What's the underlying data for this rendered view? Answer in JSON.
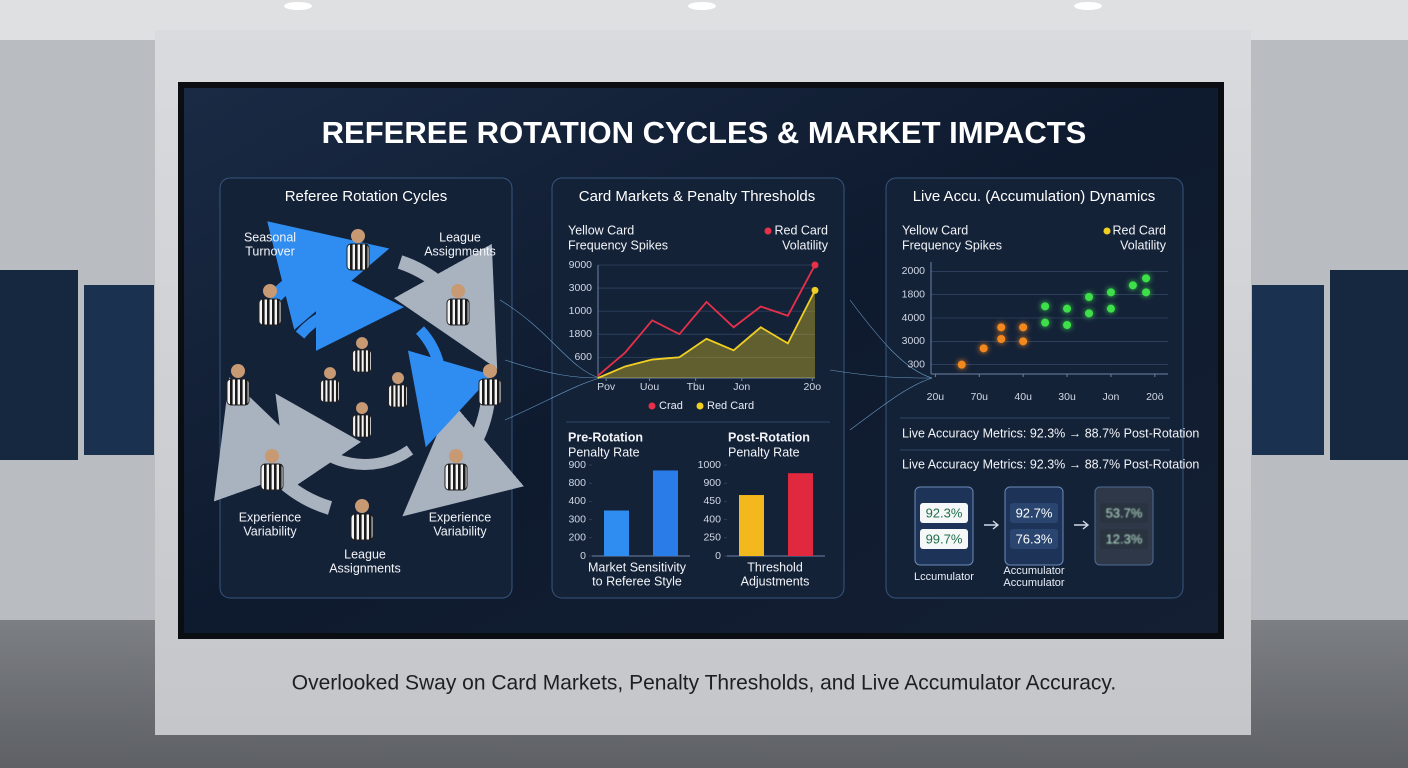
{
  "title": "REFEREE ROTATION CYCLES & MARKET IMPACTS",
  "caption": "Overlooked Sway on Card Markets, Penalty Thresholds, and Live Accumulator Accuracy.",
  "rotation": {
    "title": "Referee Rotation Cycles",
    "labels": [
      [
        "Seasonal",
        "Turnover"
      ],
      [
        "League",
        "Assignments"
      ],
      [
        "Experience",
        "Variability"
      ],
      [
        "Experience",
        "Variability"
      ],
      [
        "League",
        "Assignments"
      ]
    ]
  },
  "cards_panel": {
    "title": "Card Markets & Penalty Thresholds"
  },
  "live_panel": {
    "title": "Live Accu. (Accumulation) Dynamics",
    "metrics": [
      "Live Accuracy Metrics: 92.3% → 88.7% Post-Rotation",
      "Live Accuracy Metrics: 92.3% → 88.7% Post-Rotation"
    ],
    "cards": [
      {
        "values": [
          "92.3%",
          "99.7%"
        ],
        "label": [
          "Lccumulator"
        ]
      },
      {
        "values": [
          "92.7%",
          "76.3%"
        ],
        "label": [
          "Accumulator",
          "Accumulator"
        ]
      },
      {
        "values": [
          "53.7%",
          "12.3%"
        ]
      }
    ]
  },
  "chart_data": [
    {
      "type": "line",
      "header_left": [
        "Yellow Card",
        "Frequency Spikes"
      ],
      "header_right": [
        "Red Card",
        "Volatility"
      ],
      "header_color": "#e8304a",
      "x": [
        0,
        1,
        2,
        3,
        4,
        5,
        6,
        7,
        8
      ],
      "series": [
        {
          "name": "Crad",
          "color": "#e8304a",
          "values": [
            0.2,
            1.2,
            2.6,
            2.0,
            3.4,
            2.3,
            3.2,
            2.8,
            5.0
          ]
        },
        {
          "name": "Red Card",
          "color": "#f0cf22",
          "values": [
            0.1,
            0.6,
            0.9,
            1.0,
            1.8,
            1.3,
            2.3,
            1.6,
            3.9
          ]
        }
      ],
      "xlim": [
        0,
        8
      ],
      "xticks": [
        {
          "value": 0.3,
          "label": "Pov"
        },
        {
          "value": 1.9,
          "label": "Uou"
        },
        {
          "value": 3.6,
          "label": "Tbu"
        },
        {
          "value": 5.3,
          "label": "Jon"
        },
        {
          "value": 7.9,
          "label": "20o"
        }
      ],
      "ylim": [
        0.1,
        5
      ],
      "yticks": [
        {
          "value": 1,
          "label": "600"
        },
        {
          "value": 2,
          "label": "1800"
        },
        {
          "value": 3,
          "label": "1000"
        },
        {
          "value": 4,
          "label": "3000"
        },
        {
          "value": 5,
          "label": "9000"
        }
      ],
      "grid": true
    },
    {
      "type": "scatter",
      "header_left": [
        "Yellow Card",
        "Frequency Spikes"
      ],
      "header_right": [
        "Red Card",
        "Volatility"
      ],
      "header_color": "#f0cf22",
      "series": [
        {
          "color": "#f2881e",
          "x": [
            0.6,
            1.1,
            1.5,
            1.5,
            2.0,
            2.0
          ],
          "values": [
            1.0,
            1.7,
            2.1,
            2.6,
            2.0,
            2.6
          ]
        },
        {
          "color": "#3ee04a",
          "x": [
            2.5,
            2.5,
            3.0,
            3.0,
            3.5,
            3.5,
            4.0,
            4.0,
            4.5,
            4.8,
            4.8
          ],
          "values": [
            2.8,
            3.5,
            2.7,
            3.4,
            3.2,
            3.9,
            3.4,
            4.1,
            4.4,
            4.1,
            4.7
          ]
        }
      ],
      "xlim": [
        -0.1,
        5.3
      ],
      "xticks": [
        {
          "value": 0,
          "label": "20u"
        },
        {
          "value": 1,
          "label": "70u"
        },
        {
          "value": 2,
          "label": "40u"
        },
        {
          "value": 3,
          "label": "30u"
        },
        {
          "value": 4,
          "label": "Jon"
        },
        {
          "value": 5,
          "label": "20ö"
        }
      ],
      "ylim": [
        0.6,
        5.4
      ],
      "yticks": [
        {
          "value": 1,
          "label": "300"
        },
        {
          "value": 2,
          "label": "3000"
        },
        {
          "value": 3,
          "label": "4000"
        },
        {
          "value": 4,
          "label": "1800"
        },
        {
          "value": 5,
          "label": "2000"
        }
      ],
      "grid": true
    },
    {
      "type": "bar",
      "title": [
        "Pre-Rotation",
        "Penalty Rate"
      ],
      "xlabel": [
        "Market Sensitivity",
        "to Referee Style"
      ],
      "values": [
        2.5,
        4.7
      ],
      "colors": [
        "#2f8cf0",
        "#2a7ce8"
      ],
      "ylim": [
        0,
        5
      ],
      "yticks": [
        {
          "value": 0,
          "label": "0"
        },
        {
          "value": 1,
          "label": "200"
        },
        {
          "value": 2,
          "label": "300"
        },
        {
          "value": 3,
          "label": "400"
        },
        {
          "value": 4,
          "label": "800"
        },
        {
          "value": 5,
          "label": "900"
        }
      ]
    },
    {
      "type": "bar",
      "title": [
        "Post-Rotation",
        "Penalty Rate"
      ],
      "xlabel": [
        "Threshold",
        "Adjustments"
      ],
      "values": [
        3.35,
        4.55
      ],
      "colors": [
        "#f2b81e",
        "#e0283e"
      ],
      "ylim": [
        0,
        5
      ],
      "yticks": [
        {
          "value": 0,
          "label": "0"
        },
        {
          "value": 1,
          "label": "250"
        },
        {
          "value": 2,
          "label": "400"
        },
        {
          "value": 3,
          "label": "450"
        },
        {
          "value": 4,
          "label": "900"
        },
        {
          "value": 5,
          "label": "1000"
        }
      ]
    }
  ]
}
